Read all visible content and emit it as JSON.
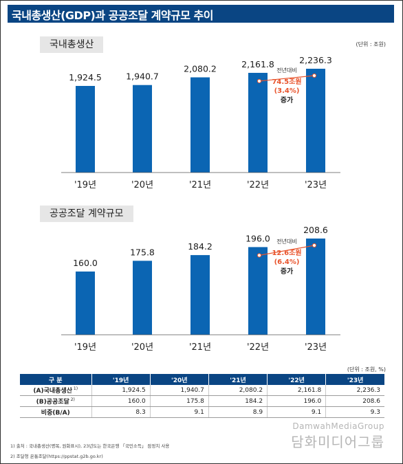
{
  "title": "국내총생산(GDP)과 공공조달 계약규모 추이",
  "unit_top": "(단위 : 조원)",
  "unit_table": "(단위 : 조원, %)",
  "colors": {
    "bar": "#0b65b3",
    "title_bg": "#0a4583",
    "accent": "#e8532b"
  },
  "chart_data": [
    {
      "type": "bar",
      "title": "국내총생산",
      "categories": [
        "'19년",
        "'20년",
        "'21년",
        "'22년",
        "'23년"
      ],
      "values": [
        1924.5,
        1940.7,
        2080.2,
        2161.8,
        2236.3
      ],
      "value_labels": [
        "1,924.5",
        "1,940.7",
        "2,080.2",
        "2,161.8",
        "2,236.3"
      ],
      "annotation": {
        "from": "'22년",
        "to": "'23년",
        "lines": [
          "전년대비",
          "74.5조원",
          "(3.4%)",
          "증가"
        ]
      }
    },
    {
      "type": "bar",
      "title": "공공조달 계약규모",
      "categories": [
        "'19년",
        "'20년",
        "'21년",
        "'22년",
        "'23년"
      ],
      "values": [
        160.0,
        175.8,
        184.2,
        196.0,
        208.6
      ],
      "value_labels": [
        "160.0",
        "175.8",
        "184.2",
        "196.0",
        "208.6"
      ],
      "annotation": {
        "from": "'22년",
        "to": "'23년",
        "lines": [
          "전년대비",
          "12.6조원",
          "(6.4%)",
          "증가"
        ]
      }
    }
  ],
  "table": {
    "headers": [
      "구 분",
      "'19년",
      "'20년",
      "'21년",
      "'22년",
      "'23년"
    ],
    "rows": [
      {
        "label": "(A)국내총생산",
        "sup": "1)",
        "values": [
          "1,924.5",
          "1,940.7",
          "2,080.2",
          "2,161.8",
          "2,236.3"
        ]
      },
      {
        "label": "(B)공공조달",
        "sup": "2)",
        "values": [
          "160.0",
          "175.8",
          "184.2",
          "196.0",
          "208.6"
        ]
      },
      {
        "label": "비중(B/A)",
        "sup": "",
        "values": [
          "8.3",
          "9.1",
          "8.9",
          "9.1",
          "9.3"
        ]
      }
    ]
  },
  "footnotes": [
    "1) 출처 : 국내총생산(명목, 원화표시), 23년도는 한국은행 「국민소득」 잠정치 사용",
    "2) 조달청 온통조달(https://ppstat.g2b.go.kr)"
  ],
  "watermark": {
    "latin": "DamwahMediaGroup",
    "korean": "담화미디어그룹"
  }
}
